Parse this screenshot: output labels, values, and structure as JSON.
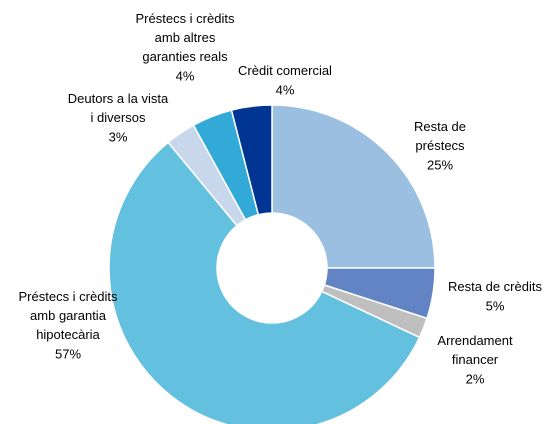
{
  "chart_data": {
    "type": "donut",
    "categories": [
      "Resta de\npréstecs",
      "Resta de crèdits",
      "Arrendament\nfinancer",
      "Préstecs i crèdits\namb garantia\nhipotecària",
      "Deutors a la vista\ni diversos",
      "Préstecs i crèdits\namb altres\ngaranties reals",
      "Crèdit comercial"
    ],
    "values": [
      25,
      5,
      2,
      57,
      3,
      4,
      4
    ],
    "value_labels": [
      "25%",
      "5%",
      "2%",
      "57%",
      "3%",
      "4%",
      "4%"
    ],
    "colors": [
      "#9bbfe0",
      "#6384c4",
      "#bfbfbf",
      "#64c0df",
      "#c9d7ec",
      "#33a9d8",
      "#003594"
    ]
  }
}
